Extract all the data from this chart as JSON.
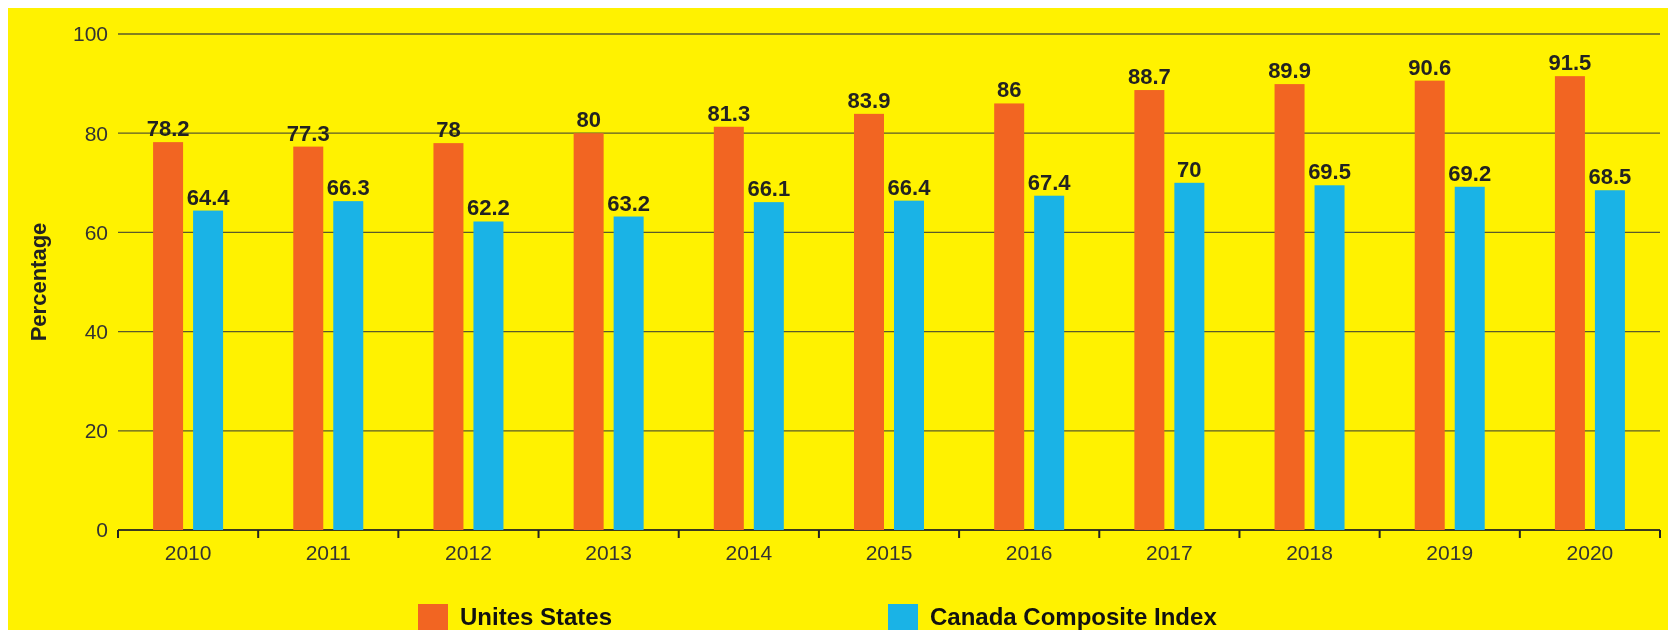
{
  "chart_data": {
    "type": "bar",
    "ylabel": "Percentage",
    "categories": [
      "2010",
      "2011",
      "2012",
      "2013",
      "2014",
      "2015",
      "2016",
      "2017",
      "2018",
      "2019",
      "2020"
    ],
    "series": [
      {
        "name": "Unites States",
        "color": "#f26522",
        "values": [
          78.2,
          77.3,
          78,
          80,
          81.3,
          83.9,
          86,
          88.7,
          89.9,
          90.6,
          91.5
        ]
      },
      {
        "name": "Canada Composite Index",
        "color": "#1ab3e6",
        "values": [
          64.4,
          66.3,
          62.2,
          63.2,
          66.1,
          66.4,
          67.4,
          70,
          69.5,
          69.2,
          68.5
        ]
      }
    ],
    "ylim": [
      0,
      100
    ],
    "yticks": [
      0,
      20,
      40,
      60,
      80,
      100
    ],
    "grid": "y",
    "legend": "bottom",
    "data_labels": true
  }
}
